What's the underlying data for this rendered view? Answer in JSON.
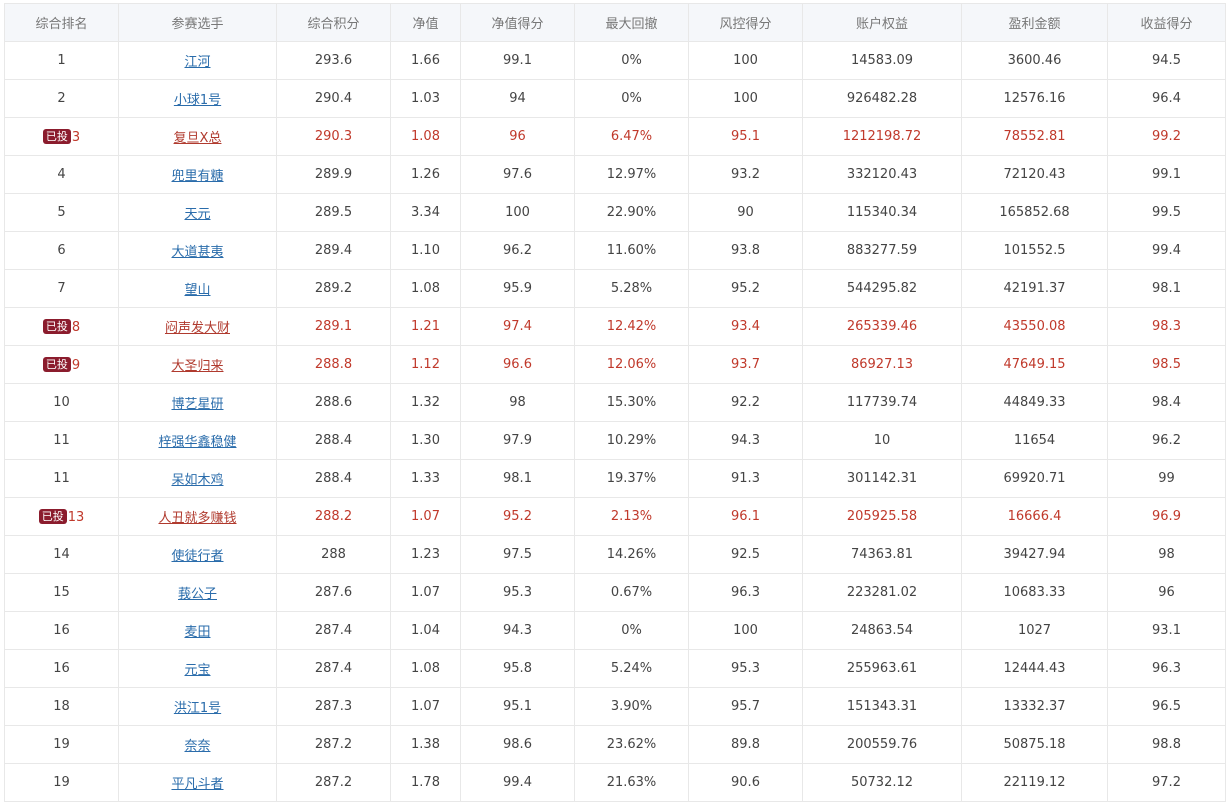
{
  "columns": [
    "综合排名",
    "参赛选手",
    "综合积分",
    "净值",
    "净值得分",
    "最大回撤",
    "风控得分",
    "账户权益",
    "盈利金额",
    "收益得分"
  ],
  "badge_label": "已投",
  "accent_color": "#c0392b",
  "badge_color": "#8b1c2d",
  "link_color": "#2a6cab",
  "rows": [
    {
      "rank": "1",
      "name": "江河",
      "score": "293.6",
      "nav": "1.66",
      "nav_score": "99.1",
      "max_dd": "0%",
      "risk_score": "100",
      "equity": "14583.09",
      "profit": "3600.46",
      "return_score": "94.5",
      "invested": false
    },
    {
      "rank": "2",
      "name": "小球1号",
      "score": "290.4",
      "nav": "1.03",
      "nav_score": "94",
      "max_dd": "0%",
      "risk_score": "100",
      "equity": "926482.28",
      "profit": "12576.16",
      "return_score": "96.4",
      "invested": false
    },
    {
      "rank": "3",
      "name": "复旦X总",
      "score": "290.3",
      "nav": "1.08",
      "nav_score": "96",
      "max_dd": "6.47%",
      "risk_score": "95.1",
      "equity": "1212198.72",
      "profit": "78552.81",
      "return_score": "99.2",
      "invested": true
    },
    {
      "rank": "4",
      "name": "兜里有糖",
      "score": "289.9",
      "nav": "1.26",
      "nav_score": "97.6",
      "max_dd": "12.97%",
      "risk_score": "93.2",
      "equity": "332120.43",
      "profit": "72120.43",
      "return_score": "99.1",
      "invested": false
    },
    {
      "rank": "5",
      "name": "天元",
      "score": "289.5",
      "nav": "3.34",
      "nav_score": "100",
      "max_dd": "22.90%",
      "risk_score": "90",
      "equity": "115340.34",
      "profit": "165852.68",
      "return_score": "99.5",
      "invested": false
    },
    {
      "rank": "6",
      "name": "大道甚夷",
      "score": "289.4",
      "nav": "1.10",
      "nav_score": "96.2",
      "max_dd": "11.60%",
      "risk_score": "93.8",
      "equity": "883277.59",
      "profit": "101552.5",
      "return_score": "99.4",
      "invested": false
    },
    {
      "rank": "7",
      "name": "望山",
      "score": "289.2",
      "nav": "1.08",
      "nav_score": "95.9",
      "max_dd": "5.28%",
      "risk_score": "95.2",
      "equity": "544295.82",
      "profit": "42191.37",
      "return_score": "98.1",
      "invested": false
    },
    {
      "rank": "8",
      "name": "闷声发大财",
      "score": "289.1",
      "nav": "1.21",
      "nav_score": "97.4",
      "max_dd": "12.42%",
      "risk_score": "93.4",
      "equity": "265339.46",
      "profit": "43550.08",
      "return_score": "98.3",
      "invested": true
    },
    {
      "rank": "9",
      "name": "大圣归来",
      "score": "288.8",
      "nav": "1.12",
      "nav_score": "96.6",
      "max_dd": "12.06%",
      "risk_score": "93.7",
      "equity": "86927.13",
      "profit": "47649.15",
      "return_score": "98.5",
      "invested": true
    },
    {
      "rank": "10",
      "name": "博艺星研",
      "score": "288.6",
      "nav": "1.32",
      "nav_score": "98",
      "max_dd": "15.30%",
      "risk_score": "92.2",
      "equity": "117739.74",
      "profit": "44849.33",
      "return_score": "98.4",
      "invested": false
    },
    {
      "rank": "11",
      "name": "梓强华鑫稳健",
      "score": "288.4",
      "nav": "1.30",
      "nav_score": "97.9",
      "max_dd": "10.29%",
      "risk_score": "94.3",
      "equity": "10",
      "profit": "11654",
      "return_score": "96.2",
      "invested": false
    },
    {
      "rank": "11",
      "name": "呆如木鸡",
      "score": "288.4",
      "nav": "1.33",
      "nav_score": "98.1",
      "max_dd": "19.37%",
      "risk_score": "91.3",
      "equity": "301142.31",
      "profit": "69920.71",
      "return_score": "99",
      "invested": false
    },
    {
      "rank": "13",
      "name": "人丑就多赚钱",
      "score": "288.2",
      "nav": "1.07",
      "nav_score": "95.2",
      "max_dd": "2.13%",
      "risk_score": "96.1",
      "equity": "205925.58",
      "profit": "16666.4",
      "return_score": "96.9",
      "invested": true
    },
    {
      "rank": "14",
      "name": "使徒行者",
      "score": "288",
      "nav": "1.23",
      "nav_score": "97.5",
      "max_dd": "14.26%",
      "risk_score": "92.5",
      "equity": "74363.81",
      "profit": "39427.94",
      "return_score": "98",
      "invested": false
    },
    {
      "rank": "15",
      "name": "莪公子",
      "score": "287.6",
      "nav": "1.07",
      "nav_score": "95.3",
      "max_dd": "0.67%",
      "risk_score": "96.3",
      "equity": "223281.02",
      "profit": "10683.33",
      "return_score": "96",
      "invested": false
    },
    {
      "rank": "16",
      "name": "麦田",
      "score": "287.4",
      "nav": "1.04",
      "nav_score": "94.3",
      "max_dd": "0%",
      "risk_score": "100",
      "equity": "24863.54",
      "profit": "1027",
      "return_score": "93.1",
      "invested": false
    },
    {
      "rank": "16",
      "name": "元宝",
      "score": "287.4",
      "nav": "1.08",
      "nav_score": "95.8",
      "max_dd": "5.24%",
      "risk_score": "95.3",
      "equity": "255963.61",
      "profit": "12444.43",
      "return_score": "96.3",
      "invested": false
    },
    {
      "rank": "18",
      "name": "洪江1号",
      "score": "287.3",
      "nav": "1.07",
      "nav_score": "95.1",
      "max_dd": "3.90%",
      "risk_score": "95.7",
      "equity": "151343.31",
      "profit": "13332.37",
      "return_score": "96.5",
      "invested": false
    },
    {
      "rank": "19",
      "name": "奈奈",
      "score": "287.2",
      "nav": "1.38",
      "nav_score": "98.6",
      "max_dd": "23.62%",
      "risk_score": "89.8",
      "equity": "200559.76",
      "profit": "50875.18",
      "return_score": "98.8",
      "invested": false
    },
    {
      "rank": "19",
      "name": "平凡斗者",
      "score": "287.2",
      "nav": "1.78",
      "nav_score": "99.4",
      "max_dd": "21.63%",
      "risk_score": "90.6",
      "equity": "50732.12",
      "profit": "22119.12",
      "return_score": "97.2",
      "invested": false
    }
  ]
}
